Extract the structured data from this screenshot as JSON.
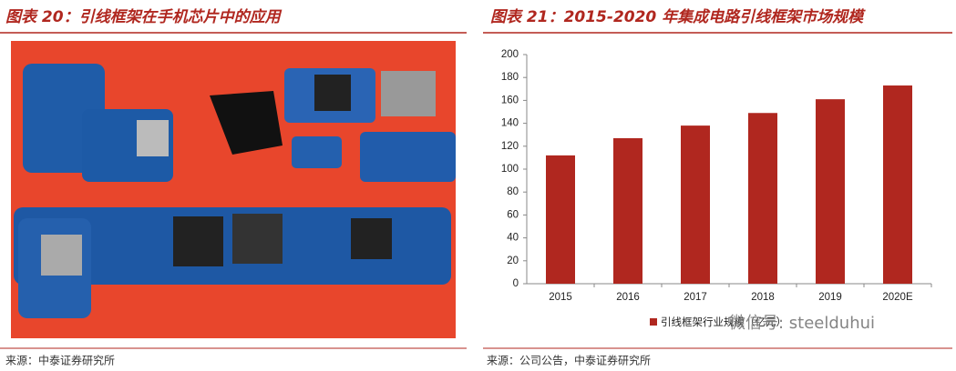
{
  "left": {
    "title": "图表 20：引线框架在手机芯片中的应用",
    "source": "来源：中泰证券研究所"
  },
  "right": {
    "source": "来源：公司公告，中泰证券研究所",
    "watermark": "微信号: steelduhui"
  },
  "chart_data": {
    "type": "bar",
    "title": "图表 21：2015-2020 年集成电路引线框架市场规模",
    "categories": [
      "2015",
      "2016",
      "2017",
      "2018",
      "2019",
      "2020E"
    ],
    "series": [
      {
        "name": "引线框架行业规模（亿元）",
        "color": "#b0271f",
        "values": [
          112,
          127,
          138,
          149,
          161,
          173
        ]
      }
    ],
    "ylim": [
      0,
      200
    ],
    "yticks": [
      0,
      20,
      40,
      60,
      80,
      100,
      120,
      140,
      160,
      180,
      200
    ],
    "grid": false,
    "legend": "bottom"
  }
}
